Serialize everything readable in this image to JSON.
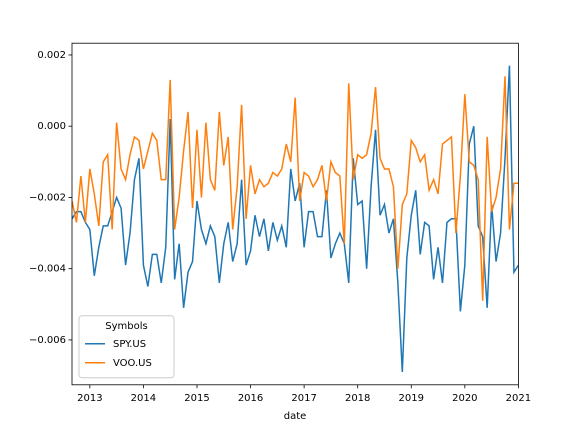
{
  "chart_data": {
    "type": "line",
    "xlabel": "date",
    "x": [
      2012.667,
      2012.75,
      2012.833,
      2012.917,
      2013.0,
      2013.083,
      2013.167,
      2013.25,
      2013.333,
      2013.417,
      2013.5,
      2013.583,
      2013.667,
      2013.75,
      2013.833,
      2013.917,
      2014.0,
      2014.083,
      2014.167,
      2014.25,
      2014.333,
      2014.417,
      2014.5,
      2014.583,
      2014.667,
      2014.75,
      2014.833,
      2014.917,
      2015.0,
      2015.083,
      2015.167,
      2015.25,
      2015.333,
      2015.417,
      2015.5,
      2015.583,
      2015.667,
      2015.75,
      2015.833,
      2015.917,
      2016.0,
      2016.083,
      2016.167,
      2016.25,
      2016.333,
      2016.417,
      2016.5,
      2016.583,
      2016.667,
      2016.75,
      2016.833,
      2016.917,
      2017.0,
      2017.083,
      2017.167,
      2017.25,
      2017.333,
      2017.417,
      2017.5,
      2017.583,
      2017.667,
      2017.75,
      2017.833,
      2017.917,
      2018.0,
      2018.083,
      2018.167,
      2018.25,
      2018.333,
      2018.417,
      2018.5,
      2018.583,
      2018.667,
      2018.75,
      2018.833,
      2018.917,
      2019.0,
      2019.083,
      2019.167,
      2019.25,
      2019.333,
      2019.417,
      2019.5,
      2019.583,
      2019.667,
      2019.75,
      2019.833,
      2019.917,
      2020.0,
      2020.083,
      2020.167,
      2020.25,
      2020.333,
      2020.417,
      2020.5,
      2020.583,
      2020.667,
      2020.75,
      2020.833,
      2020.917,
      2021.0
    ],
    "series": [
      {
        "name": "SPY.US",
        "color": "#1f77b4",
        "values": [
          -0.0026,
          -0.0024,
          -0.0024,
          -0.0027,
          -0.0029,
          -0.0042,
          -0.0034,
          -0.0028,
          -0.0028,
          -0.0024,
          -0.002,
          -0.0023,
          -0.0039,
          -0.003,
          -0.0015,
          -0.0009,
          -0.0039,
          -0.0045,
          -0.0036,
          -0.0036,
          -0.0044,
          -0.0034,
          0.0002,
          -0.0043,
          -0.0033,
          -0.0051,
          -0.0041,
          -0.0038,
          -0.0021,
          -0.0029,
          -0.0033,
          -0.0028,
          -0.0031,
          -0.0044,
          -0.0033,
          -0.0027,
          -0.0038,
          -0.0033,
          -0.0015,
          -0.0039,
          -0.0035,
          -0.0025,
          -0.0031,
          -0.0026,
          -0.0035,
          -0.0027,
          -0.0032,
          -0.0028,
          -0.0034,
          -0.0012,
          -0.0021,
          -0.0016,
          -0.0034,
          -0.0024,
          -0.0024,
          -0.0031,
          -0.0031,
          -0.0018,
          -0.0037,
          -0.0033,
          -0.003,
          -0.0033,
          -0.0044,
          -0.0009,
          -0.0022,
          -0.0021,
          -0.004,
          -0.0017,
          -0.0001,
          -0.0025,
          -0.0022,
          -0.003,
          -0.0026,
          -0.0044,
          -0.0069,
          -0.0037,
          -0.0025,
          -0.0018,
          -0.0036,
          -0.0027,
          -0.0028,
          -0.0043,
          -0.0034,
          -0.0044,
          -0.0027,
          -0.0026,
          -0.0026,
          -0.0052,
          -0.0039,
          -0.0005,
          0.0,
          -0.0028,
          -0.0031,
          -0.0051,
          -0.0022,
          -0.0038,
          -0.003,
          -0.0009,
          0.0017,
          -0.0041,
          -0.0039
        ]
      },
      {
        "name": "VOO.US",
        "color": "#ff7f0e",
        "values": [
          -0.0021,
          -0.0027,
          -0.0014,
          -0.0027,
          -0.0012,
          -0.0019,
          -0.0028,
          -0.001,
          -0.0008,
          -0.0029,
          0.0001,
          -0.0012,
          -0.0015,
          -0.0008,
          -0.0003,
          -0.0004,
          -0.0012,
          -0.0007,
          -0.0002,
          -0.0004,
          -0.0015,
          -0.0015,
          0.0013,
          -0.0029,
          -0.002,
          -0.0007,
          0.0004,
          -0.0023,
          -0.0001,
          -0.002,
          0.0001,
          -0.0015,
          -0.0018,
          0.0004,
          -0.0011,
          -0.0003,
          -0.0029,
          -0.0017,
          0.0006,
          -0.0026,
          -0.0011,
          -0.0019,
          -0.0015,
          -0.0017,
          -0.0016,
          -0.0013,
          -0.0014,
          -0.0012,
          -0.0005,
          -0.001,
          0.0008,
          -0.0021,
          -0.0013,
          -0.0014,
          -0.0017,
          -0.0015,
          -0.0011,
          -0.0021,
          -0.001,
          -0.0013,
          -0.0014,
          -0.0033,
          0.0012,
          -0.0015,
          -0.0008,
          -0.0009,
          -0.0008,
          -0.0002,
          0.0011,
          -0.0009,
          -0.0012,
          -0.0012,
          -0.0017,
          -0.004,
          -0.0022,
          -0.0019,
          -0.0004,
          -0.0006,
          -0.001,
          -0.0008,
          -0.0018,
          -0.0015,
          -0.0019,
          -0.0005,
          -0.0004,
          -0.0003,
          -0.003,
          -0.0014,
          0.0009,
          -0.001,
          -0.0011,
          -0.0015,
          -0.0049,
          -0.0003,
          -0.0024,
          -0.002,
          -0.0012,
          0.0014,
          -0.0029,
          -0.0016,
          -0.0016
        ]
      }
    ],
    "legend_title": "Symbols",
    "legend": "lower left",
    "xlim": [
      2012.667,
      2021.0
    ],
    "xticks": [
      2013,
      2014,
      2015,
      2016,
      2017,
      2018,
      2019,
      2020,
      2021
    ],
    "ylim": [
      -0.00726,
      0.00233
    ],
    "yticks": [
      {
        "value": -0.006,
        "label": "−0.006"
      },
      {
        "value": -0.004,
        "label": "−0.004"
      },
      {
        "value": -0.002,
        "label": "−0.002"
      },
      {
        "value": 0,
        "label": "0.000"
      },
      0.002
    ],
    "grid": false
  }
}
